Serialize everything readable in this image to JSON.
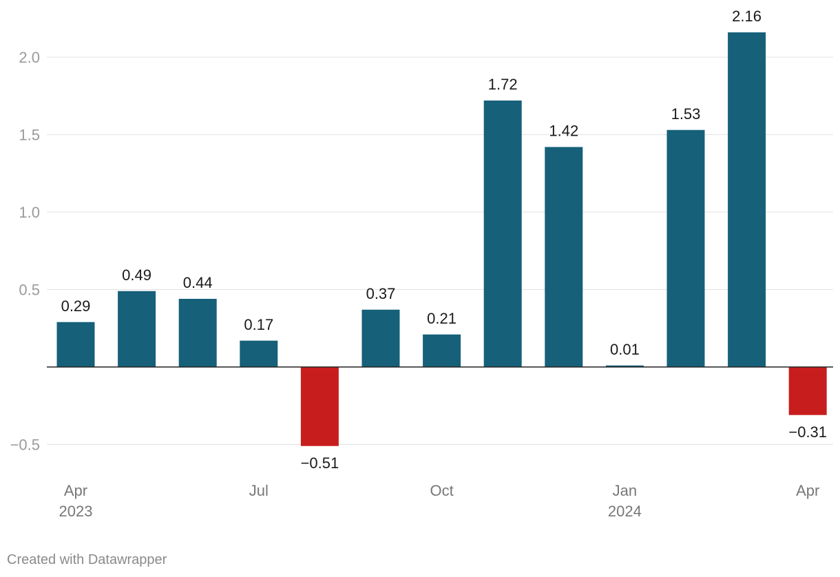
{
  "chart_data": {
    "type": "bar",
    "title": "",
    "xlabel": "",
    "ylabel": "",
    "categories": [
      "Apr 2023",
      "May 2023",
      "Jun 2023",
      "Jul 2023",
      "Aug 2023",
      "Sep 2023",
      "Oct 2023",
      "Nov 2023",
      "Dec 2023",
      "Jan 2024",
      "Feb 2024",
      "Mar 2024",
      "Apr 2024"
    ],
    "values": [
      0.29,
      0.49,
      0.44,
      0.17,
      -0.51,
      0.37,
      0.21,
      1.72,
      1.42,
      0.01,
      1.53,
      2.16,
      -0.31
    ],
    "data_labels": [
      "0.29",
      "0.49",
      "0.44",
      "0.17",
      "−0.51",
      "0.37",
      "0.21",
      "1.72",
      "1.42",
      "0.01",
      "1.53",
      "2.16",
      "−0.31"
    ],
    "y_ticks": [
      {
        "value": -0.5,
        "label": "−0.5"
      },
      {
        "value": 0.5,
        "label": "0.5"
      },
      {
        "value": 1.0,
        "label": "1.0"
      },
      {
        "value": 1.5,
        "label": "1.5"
      },
      {
        "value": 2.0,
        "label": "2.0"
      }
    ],
    "x_ticks": [
      {
        "index": 0,
        "month": "Apr",
        "year": "2023"
      },
      {
        "index": 3,
        "month": "Jul",
        "year": ""
      },
      {
        "index": 6,
        "month": "Oct",
        "year": ""
      },
      {
        "index": 9,
        "month": "Jan",
        "year": "2024"
      },
      {
        "index": 12,
        "month": "Apr",
        "year": ""
      }
    ],
    "ylim": [
      -0.62,
      2.3
    ],
    "grid": true,
    "colors": {
      "positive": "#16607a",
      "negative": "#c71e1d"
    }
  },
  "footer": {
    "credit": "Created with Datawrapper"
  }
}
